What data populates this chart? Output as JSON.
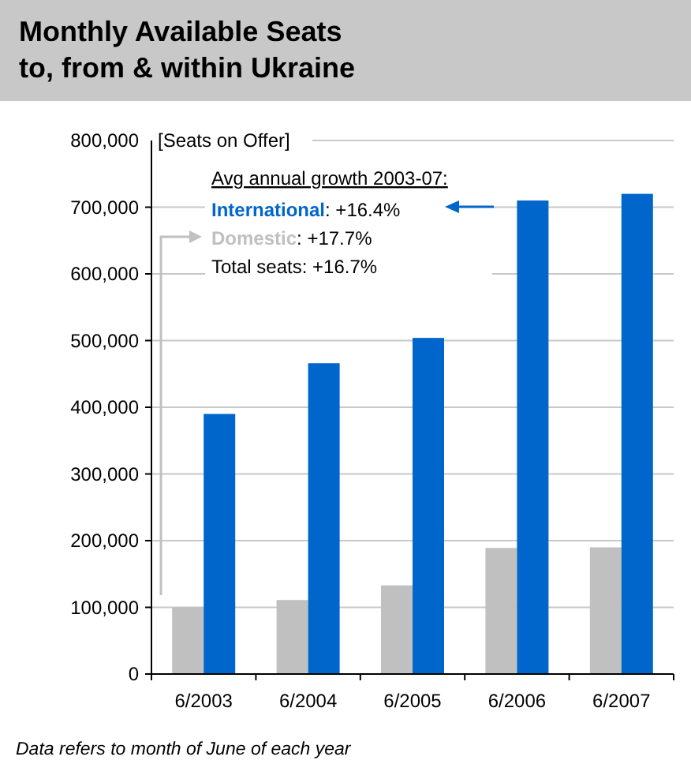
{
  "chart_data": {
    "type": "bar",
    "title": "Monthly Available Seats\nto, from & within Ukraine",
    "ylabel": "[Seats on Offer]",
    "categories": [
      "6/2003",
      "6/2004",
      "6/2005",
      "6/2006",
      "6/2007"
    ],
    "series": [
      {
        "name": "Domestic",
        "color": "#c0c0c0",
        "values": [
          100000,
          111000,
          133000,
          189000,
          190000
        ]
      },
      {
        "name": "International",
        "color": "#0066cc",
        "values": [
          390000,
          466000,
          504000,
          710000,
          720000
        ]
      }
    ],
    "ylim": [
      0,
      800000
    ],
    "yticks": [
      {
        "value": 0,
        "label": "0"
      },
      {
        "value": 100000,
        "label": "100,000"
      },
      {
        "value": 200000,
        "label": "200,000"
      },
      {
        "value": 300000,
        "label": "300,000"
      },
      {
        "value": 400000,
        "label": "400,000"
      },
      {
        "value": 500000,
        "label": "500,000"
      },
      {
        "value": 600000,
        "label": "600,000"
      },
      {
        "value": 700000,
        "label": "700,000"
      },
      {
        "value": 800000,
        "label": "800,000"
      }
    ],
    "grid": "y",
    "legend": "top left",
    "annotations": [
      "Avg annual growth 2003-07:",
      ": +17.7%",
      ": +16.4%",
      "Total seats: +16.7%",
      "Data refers to month of June of each year"
    ]
  }
}
